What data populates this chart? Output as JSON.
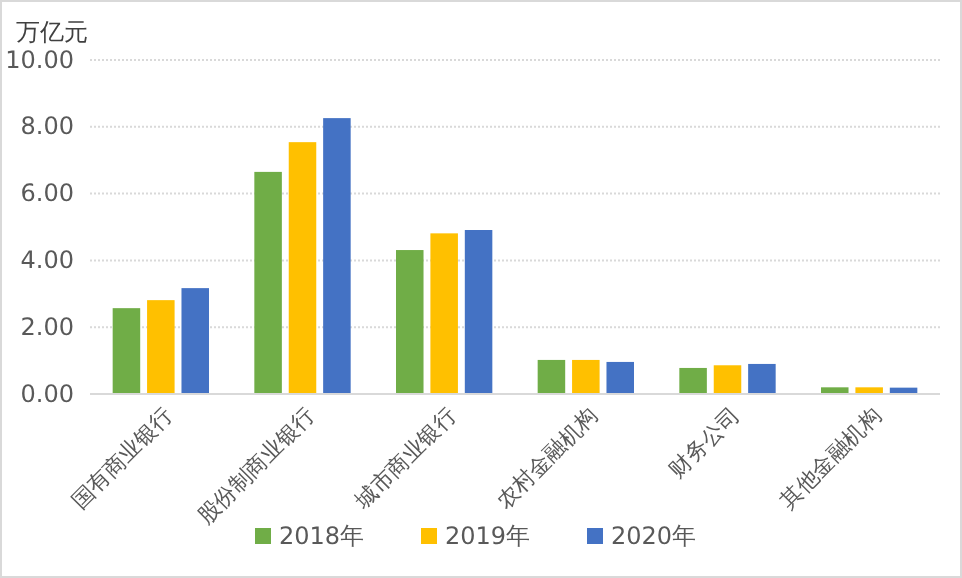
{
  "chart_data": {
    "type": "bar",
    "ylabel": "万亿元",
    "categories": [
      "国有商业银行",
      "股份制商业银行",
      "城市商业银行",
      "农村金融机构",
      "财务公司",
      "其他金融机构"
    ],
    "series": [
      {
        "name": "2018年",
        "color": "#70ad47",
        "values": [
          2.57,
          6.65,
          4.31,
          1.02,
          0.78,
          0.2
        ]
      },
      {
        "name": "2019年",
        "color": "#ffc000",
        "values": [
          2.81,
          7.54,
          4.81,
          1.02,
          0.86,
          0.2
        ]
      },
      {
        "name": "2020年",
        "color": "#4472c4",
        "values": [
          3.17,
          8.26,
          4.91,
          0.96,
          0.9,
          0.19
        ]
      }
    ],
    "ylim": [
      0,
      10
    ],
    "yticks": [
      {
        "value": 0,
        "label": "0.00"
      },
      {
        "value": 2,
        "label": "2.00"
      },
      {
        "value": 4,
        "label": "4.00"
      },
      {
        "value": 6,
        "label": "6.00"
      },
      {
        "value": 8,
        "label": "8.00"
      },
      {
        "value": 10,
        "label": "10.00"
      }
    ],
    "grid": "y",
    "legend": "bottom"
  }
}
